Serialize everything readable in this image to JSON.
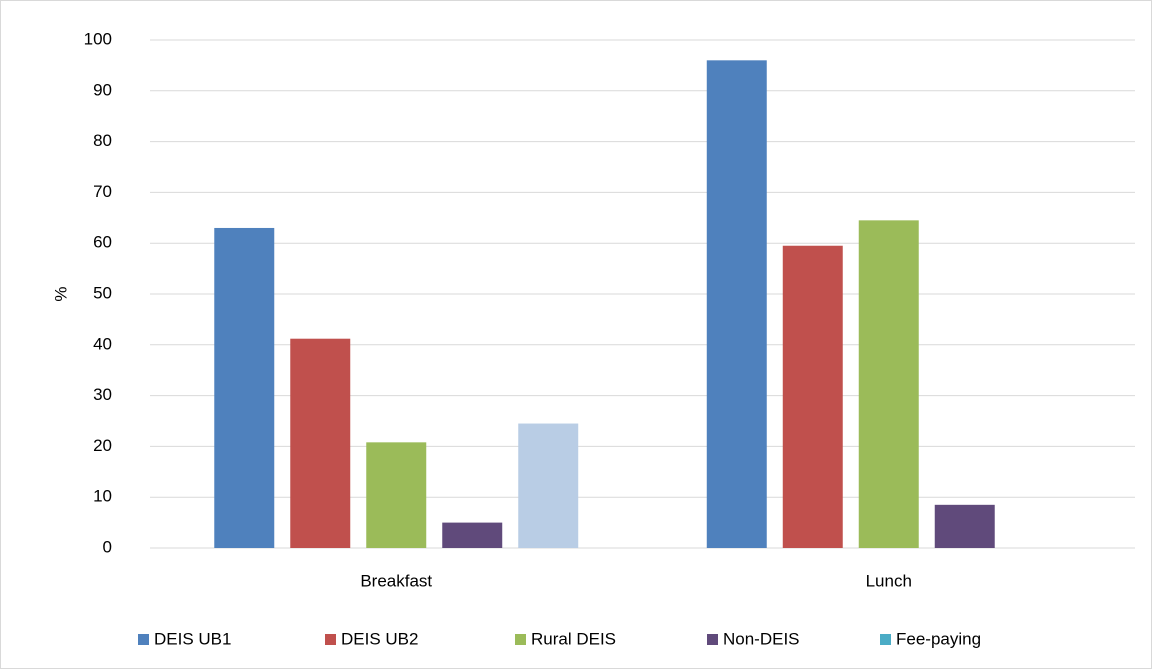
{
  "chart_data": {
    "type": "bar",
    "y_label": "%",
    "categories": [
      "Breakfast",
      "Lunch"
    ],
    "series": [
      {
        "name": "DEIS UB1",
        "color": "#4f81bd",
        "values": [
          63,
          96
        ]
      },
      {
        "name": "DEIS UB2",
        "color": "#c0504d",
        "values": [
          41.2,
          59.5
        ]
      },
      {
        "name": "Rural DEIS",
        "color": "#9bbb59",
        "values": [
          20.8,
          64.5
        ]
      },
      {
        "name": "Non-DEIS",
        "color": "#604a7b",
        "values": [
          5,
          8.5
        ]
      },
      {
        "name": "Fee-paying",
        "color": "#4bacc6",
        "values": [
          24.5,
          null
        ],
        "point_colors": [
          "#b9cde5",
          null
        ]
      }
    ],
    "ylim": [
      0,
      100
    ],
    "yticks": [
      0,
      10,
      20,
      30,
      40,
      50,
      60,
      70,
      80,
      90,
      100
    ],
    "grid": true,
    "legend": "bottom"
  }
}
